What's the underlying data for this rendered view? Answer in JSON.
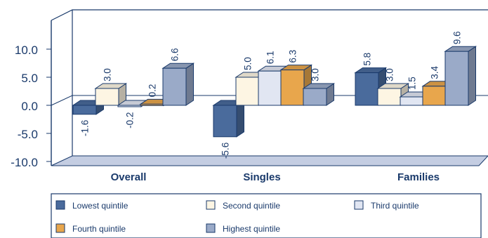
{
  "chart_data": {
    "type": "bar",
    "categories": [
      "Overall",
      "Singles",
      "Families"
    ],
    "series": [
      {
        "name": "Lowest quintile",
        "color": "#4a6b9c",
        "values": [
          -1.6,
          -5.6,
          5.8
        ]
      },
      {
        "name": "Second quintile",
        "color": "#fdf5e3",
        "values": [
          3.0,
          5.0,
          3.0
        ]
      },
      {
        "name": "Third quintile",
        "color": "#e1e6f2",
        "values": [
          -0.2,
          6.1,
          1.5
        ]
      },
      {
        "name": "Fourth quintile",
        "color": "#e8a64c",
        "values": [
          0.2,
          6.3,
          3.4
        ]
      },
      {
        "name": "Highest quintile",
        "color": "#9aaac8",
        "values": [
          6.6,
          3.0,
          9.6
        ]
      }
    ],
    "y_ticks": [
      "10.0",
      "5.0",
      "0.0",
      "-5.0",
      "-10.0"
    ],
    "ylim": [
      -10,
      10
    ],
    "style": "3d",
    "legend_placement": "bottom",
    "colors": {
      "axis": "#1a3a6b",
      "floor": "#c4cde2"
    }
  }
}
